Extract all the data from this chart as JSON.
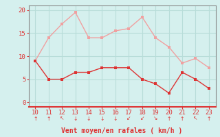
{
  "x": [
    10,
    11,
    12,
    13,
    14,
    15,
    16,
    17,
    18,
    19,
    20,
    21,
    22,
    23
  ],
  "y_mean": [
    9,
    5,
    5,
    6.5,
    6.5,
    7.5,
    7.5,
    7.5,
    5,
    4,
    2,
    6.5,
    5,
    3
  ],
  "y_gust": [
    9,
    14,
    17,
    19.5,
    14,
    14,
    15.5,
    16,
    18.5,
    14,
    12,
    8.5,
    9.5,
    7.5
  ],
  "line_color_mean": "#dd3333",
  "line_color_gust": "#f0a0a0",
  "bg_color": "#d5f0ee",
  "grid_color": "#b8ddd9",
  "spine_color": "#888888",
  "bottom_spine_color": "#dd3333",
  "xlabel": "Vent moyen/en rafales ( km/h )",
  "xlim": [
    9.5,
    23.5
  ],
  "ylim": [
    -1,
    21
  ],
  "yticks": [
    0,
    5,
    10,
    15,
    20
  ],
  "xticks": [
    10,
    11,
    12,
    13,
    14,
    15,
    16,
    17,
    18,
    19,
    20,
    21,
    22,
    23
  ],
  "tick_color": "#dd3333",
  "label_color": "#dd3333",
  "arrows": [
    "↑",
    "↑",
    "↖",
    "↓",
    "↓",
    "↓",
    "↓",
    "↙",
    "↙",
    "↘",
    "↑",
    "↑",
    "↖",
    "↑"
  ]
}
